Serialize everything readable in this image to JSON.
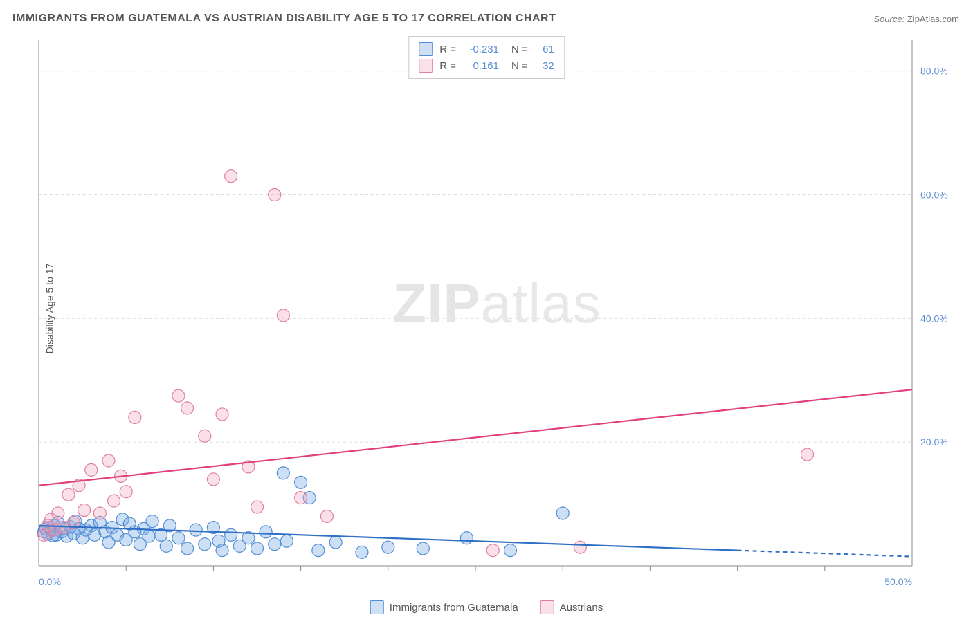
{
  "title": "IMMIGRANTS FROM GUATEMALA VS AUSTRIAN DISABILITY AGE 5 TO 17 CORRELATION CHART",
  "source_label": "Source:",
  "source_name": "ZipAtlas.com",
  "watermark_bold": "ZIP",
  "watermark_rest": "atlas",
  "y_axis_label": "Disability Age 5 to 17",
  "chart": {
    "type": "scatter",
    "background_color": "#ffffff",
    "grid_color": "#dddddd",
    "axis_line_color": "#888888",
    "tick_label_color": "#5b8dd6",
    "xlim": [
      0,
      50
    ],
    "ylim": [
      0,
      85
    ],
    "x_ticks": [
      0,
      50
    ],
    "x_tick_labels": [
      "0.0%",
      "50.0%"
    ],
    "x_minor_ticks": [
      5,
      10,
      15,
      20,
      25,
      30,
      35,
      40,
      45
    ],
    "y_ticks": [
      20,
      40,
      60,
      80
    ],
    "y_tick_labels": [
      "20.0%",
      "40.0%",
      "60.0%",
      "80.0%"
    ],
    "marker_radius": 9,
    "marker_fill_opacity": 0.35,
    "marker_stroke_width": 1.2,
    "line_width": 2.2,
    "series": [
      {
        "key": "guatemala",
        "label": "Immigrants from Guatemala",
        "color": "#6fa3e0",
        "stroke": "#4f8dd6",
        "line_color": "#2f6fc4",
        "R": "-0.231",
        "N": "61",
        "trend": {
          "x1": 0,
          "y1": 6.5,
          "x2": 40,
          "y2": 2.5,
          "extend_x": 50,
          "extend_y": 1.5
        },
        "points": [
          [
            0.3,
            5.5
          ],
          [
            0.4,
            6.0
          ],
          [
            0.5,
            5.2
          ],
          [
            0.6,
            6.2
          ],
          [
            0.7,
            5.8
          ],
          [
            0.8,
            4.9
          ],
          [
            0.9,
            6.5
          ],
          [
            1.0,
            5.0
          ],
          [
            1.1,
            7.0
          ],
          [
            1.3,
            5.5
          ],
          [
            1.5,
            6.0
          ],
          [
            1.6,
            4.8
          ],
          [
            1.8,
            6.3
          ],
          [
            2.0,
            5.2
          ],
          [
            2.1,
            7.2
          ],
          [
            2.3,
            6.0
          ],
          [
            2.5,
            4.5
          ],
          [
            2.7,
            5.8
          ],
          [
            3.0,
            6.5
          ],
          [
            3.2,
            5.0
          ],
          [
            3.5,
            7.0
          ],
          [
            3.8,
            5.5
          ],
          [
            4.0,
            3.8
          ],
          [
            4.2,
            6.2
          ],
          [
            4.5,
            5.0
          ],
          [
            4.8,
            7.5
          ],
          [
            5.0,
            4.2
          ],
          [
            5.2,
            6.8
          ],
          [
            5.5,
            5.5
          ],
          [
            5.8,
            3.5
          ],
          [
            6.0,
            6.0
          ],
          [
            6.3,
            4.8
          ],
          [
            6.5,
            7.2
          ],
          [
            7.0,
            5.0
          ],
          [
            7.3,
            3.2
          ],
          [
            7.5,
            6.5
          ],
          [
            8.0,
            4.5
          ],
          [
            8.5,
            2.8
          ],
          [
            9.0,
            5.8
          ],
          [
            9.5,
            3.5
          ],
          [
            10.0,
            6.2
          ],
          [
            10.3,
            4.0
          ],
          [
            10.5,
            2.5
          ],
          [
            11.0,
            5.0
          ],
          [
            11.5,
            3.2
          ],
          [
            12.0,
            4.5
          ],
          [
            12.5,
            2.8
          ],
          [
            13.0,
            5.5
          ],
          [
            13.5,
            3.5
          ],
          [
            14.0,
            15.0
          ],
          [
            14.2,
            4.0
          ],
          [
            15.0,
            13.5
          ],
          [
            15.5,
            11.0
          ],
          [
            16.0,
            2.5
          ],
          [
            17.0,
            3.8
          ],
          [
            18.5,
            2.2
          ],
          [
            20.0,
            3.0
          ],
          [
            22.0,
            2.8
          ],
          [
            24.5,
            4.5
          ],
          [
            27.0,
            2.5
          ],
          [
            30.0,
            8.5
          ]
        ]
      },
      {
        "key": "austrians",
        "label": "Austrians",
        "color": "#f0a6bc",
        "stroke": "#e07fa0",
        "line_color": "#e23f7e",
        "R": "0.161",
        "N": "32",
        "trend": {
          "x1": 0,
          "y1": 13.0,
          "x2": 50,
          "y2": 28.5
        },
        "points": [
          [
            0.3,
            5.0
          ],
          [
            0.5,
            6.5
          ],
          [
            0.7,
            7.5
          ],
          [
            0.9,
            5.8
          ],
          [
            1.1,
            8.5
          ],
          [
            1.4,
            6.2
          ],
          [
            1.7,
            11.5
          ],
          [
            2.0,
            7.0
          ],
          [
            2.3,
            13.0
          ],
          [
            2.6,
            9.0
          ],
          [
            3.0,
            15.5
          ],
          [
            3.5,
            8.5
          ],
          [
            4.0,
            17.0
          ],
          [
            4.3,
            10.5
          ],
          [
            4.7,
            14.5
          ],
          [
            5.0,
            12.0
          ],
          [
            5.5,
            24.0
          ],
          [
            8.0,
            27.5
          ],
          [
            8.5,
            25.5
          ],
          [
            9.5,
            21.0
          ],
          [
            10.0,
            14.0
          ],
          [
            10.5,
            24.5
          ],
          [
            11.0,
            63.0
          ],
          [
            12.0,
            16.0
          ],
          [
            12.5,
            9.5
          ],
          [
            13.5,
            60.0
          ],
          [
            14.0,
            40.5
          ],
          [
            15.0,
            11.0
          ],
          [
            16.5,
            8.0
          ],
          [
            26.0,
            2.5
          ],
          [
            31.0,
            3.0
          ],
          [
            44.0,
            18.0
          ]
        ]
      }
    ]
  },
  "stats_legend": {
    "R_label": "R =",
    "N_label": "N ="
  }
}
